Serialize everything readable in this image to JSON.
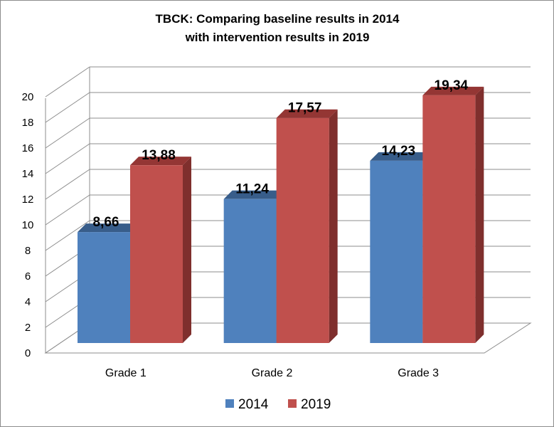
{
  "chart_data": {
    "type": "bar",
    "title_lines": [
      "TBCK: Comparing  baseline results in 2014",
      "with intervention results in 2019"
    ],
    "categories": [
      "Grade 1",
      "Grade 2",
      "Grade 3"
    ],
    "series": [
      {
        "name": "2014",
        "values": [
          8.66,
          11.24,
          14.23
        ],
        "labels": [
          "8,66",
          "11,24",
          "14,23"
        ],
        "color": "#4f81bd",
        "top_color": "#385d8a",
        "side_color": "#2c4d75"
      },
      {
        "name": "2019",
        "values": [
          13.88,
          17.57,
          19.34
        ],
        "labels": [
          "13,88",
          "17,57",
          "19,34"
        ],
        "color": "#c0504d",
        "top_color": "#943634",
        "side_color": "#7f2f2d"
      }
    ],
    "ylim": [
      0,
      20
    ],
    "yticks": [
      "0",
      "2",
      "4",
      "6",
      "8",
      "10",
      "12",
      "14",
      "16",
      "18",
      "20"
    ],
    "grid": true,
    "three_d": true,
    "legend_position": "bottom"
  }
}
